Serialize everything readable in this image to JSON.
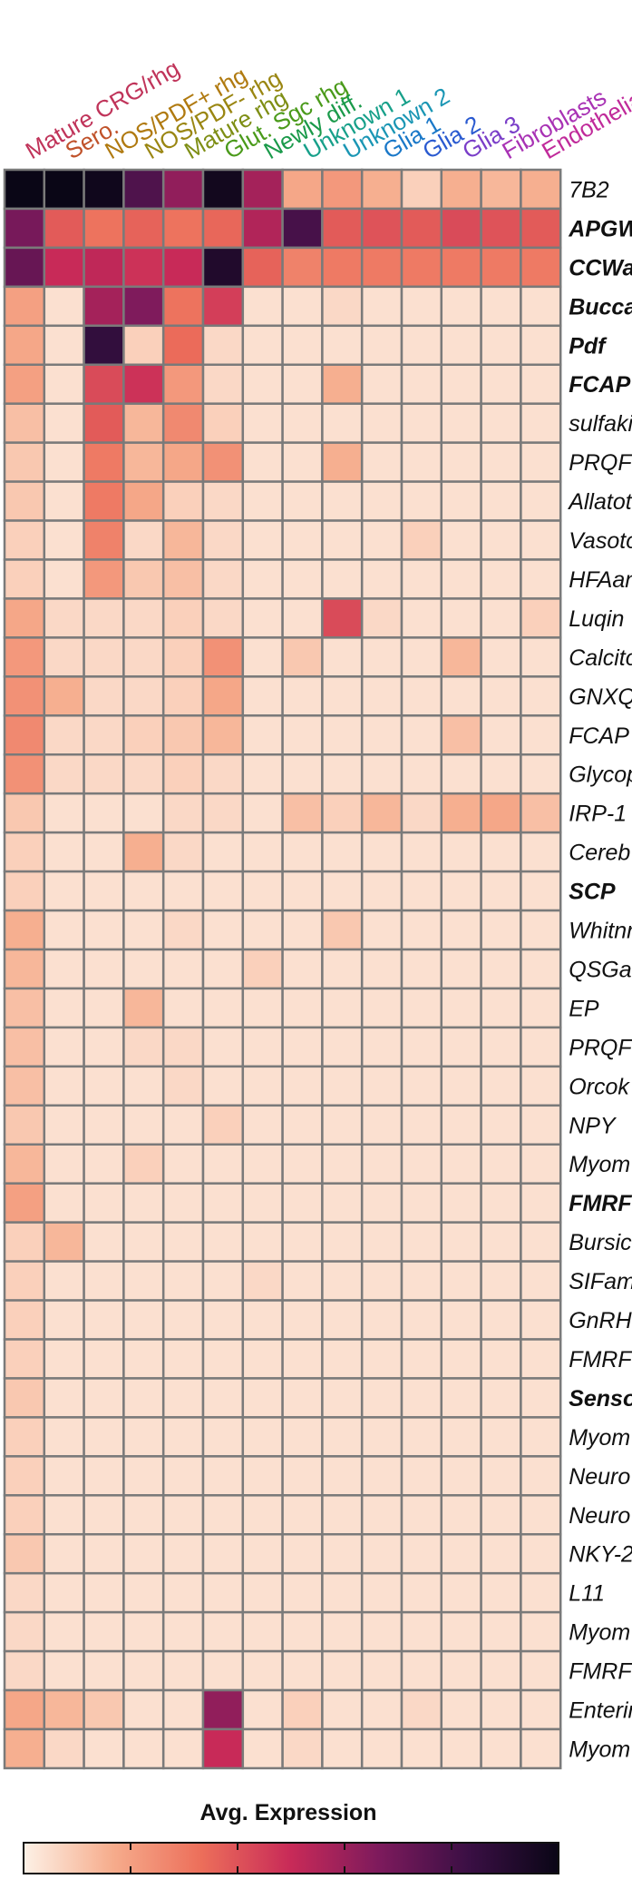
{
  "chart_data": {
    "type": "heatmap",
    "columns": [
      {
        "label": "Mature CRG/rhg",
        "color": "#c0345a"
      },
      {
        "label": "Sero.",
        "color": "#c0522a"
      },
      {
        "label": "NOS/PDF+ rhg",
        "color": "#b07a10"
      },
      {
        "label": "NOS/PDF- rhg",
        "color": "#9a8612"
      },
      {
        "label": "Mature rhg",
        "color": "#7e8e14"
      },
      {
        "label": "Glut. Sgc rhg",
        "color": "#4a9a1a"
      },
      {
        "label": "Newly diff.",
        "color": "#1a9a4a"
      },
      {
        "label": "Unknown 1",
        "color": "#17a08a"
      },
      {
        "label": "Unknown 2",
        "color": "#1a96b4"
      },
      {
        "label": "Glia 1",
        "color": "#1a78c8"
      },
      {
        "label": "Glia 2",
        "color": "#2a5ad0"
      },
      {
        "label": "Glia 3",
        "color": "#7a3ec8"
      },
      {
        "label": "Fibroblasts",
        "color": "#a832b4"
      },
      {
        "label": "Endothelial",
        "color": "#c02a9a"
      }
    ],
    "rows": [
      {
        "label": "7B2",
        "bold": false
      },
      {
        "label": "APGW",
        "bold": true
      },
      {
        "label": "CCWa",
        "bold": true
      },
      {
        "label": "Bucca",
        "bold": true
      },
      {
        "label": "Pdf",
        "bold": true
      },
      {
        "label": "FCAP",
        "bold": true
      },
      {
        "label": "sulfaki",
        "bold": false
      },
      {
        "label": "PRQF",
        "bold": false
      },
      {
        "label": "Allatot",
        "bold": false
      },
      {
        "label": "Vasoto",
        "bold": false
      },
      {
        "label": "HFAan",
        "bold": false
      },
      {
        "label": "Luqin",
        "bold": false
      },
      {
        "label": "Calcito",
        "bold": false
      },
      {
        "label": "GNXQ",
        "bold": false
      },
      {
        "label": "FCAP",
        "bold": false
      },
      {
        "label": "Glycop",
        "bold": false
      },
      {
        "label": "IRP-1",
        "bold": false
      },
      {
        "label": "Cereb",
        "bold": false
      },
      {
        "label": "SCP",
        "bold": true
      },
      {
        "label": "Whitnr",
        "bold": false
      },
      {
        "label": "QSGa",
        "bold": false
      },
      {
        "label": "EP",
        "bold": false
      },
      {
        "label": "PRQF",
        "bold": false
      },
      {
        "label": "Orcok",
        "bold": false
      },
      {
        "label": "NPY",
        "bold": false
      },
      {
        "label": "Myom",
        "bold": false
      },
      {
        "label": "FMRF",
        "bold": true
      },
      {
        "label": "Bursic",
        "bold": false
      },
      {
        "label": "SIFam",
        "bold": false
      },
      {
        "label": "GnRH",
        "bold": false
      },
      {
        "label": "FMRF",
        "bold": false
      },
      {
        "label": "Senso",
        "bold": true
      },
      {
        "label": "Myom",
        "bold": false
      },
      {
        "label": "Neuro",
        "bold": false
      },
      {
        "label": "Neuro",
        "bold": false
      },
      {
        "label": "NKY-2",
        "bold": false
      },
      {
        "label": "L11",
        "bold": false
      },
      {
        "label": "Myom",
        "bold": false
      },
      {
        "label": "FMRF",
        "bold": false
      },
      {
        "label": "Enterin",
        "bold": false
      },
      {
        "label": "Myom",
        "bold": false
      }
    ],
    "values": [
      [
        1.0,
        1.0,
        0.98,
        0.78,
        0.62,
        0.97,
        0.58,
        0.18,
        0.22,
        0.16,
        0.08,
        0.16,
        0.14,
        0.16
      ],
      [
        0.68,
        0.38,
        0.32,
        0.36,
        0.32,
        0.35,
        0.55,
        0.8,
        0.38,
        0.4,
        0.38,
        0.42,
        0.4,
        0.38
      ],
      [
        0.72,
        0.5,
        0.52,
        0.48,
        0.5,
        0.92,
        0.36,
        0.28,
        0.3,
        0.3,
        0.3,
        0.3,
        0.3,
        0.3
      ],
      [
        0.2,
        0.04,
        0.58,
        0.66,
        0.32,
        0.45,
        0.04,
        0.04,
        0.06,
        0.04,
        0.04,
        0.04,
        0.04,
        0.04
      ],
      [
        0.18,
        0.04,
        0.86,
        0.08,
        0.34,
        0.06,
        0.04,
        0.04,
        0.04,
        0.04,
        0.04,
        0.04,
        0.04,
        0.04
      ],
      [
        0.2,
        0.04,
        0.42,
        0.48,
        0.22,
        0.06,
        0.04,
        0.04,
        0.16,
        0.04,
        0.04,
        0.04,
        0.04,
        0.04
      ],
      [
        0.12,
        0.04,
        0.38,
        0.14,
        0.26,
        0.08,
        0.04,
        0.04,
        0.04,
        0.04,
        0.04,
        0.04,
        0.04,
        0.04
      ],
      [
        0.1,
        0.04,
        0.3,
        0.14,
        0.18,
        0.24,
        0.04,
        0.04,
        0.16,
        0.04,
        0.04,
        0.04,
        0.04,
        0.04
      ],
      [
        0.1,
        0.04,
        0.3,
        0.18,
        0.08,
        0.06,
        0.04,
        0.04,
        0.04,
        0.04,
        0.04,
        0.04,
        0.04,
        0.04
      ],
      [
        0.08,
        0.04,
        0.28,
        0.06,
        0.14,
        0.06,
        0.04,
        0.04,
        0.04,
        0.04,
        0.08,
        0.04,
        0.04,
        0.04
      ],
      [
        0.08,
        0.04,
        0.22,
        0.1,
        0.12,
        0.06,
        0.04,
        0.04,
        0.04,
        0.04,
        0.04,
        0.04,
        0.04,
        0.04
      ],
      [
        0.18,
        0.06,
        0.06,
        0.06,
        0.08,
        0.06,
        0.04,
        0.04,
        0.42,
        0.06,
        0.04,
        0.04,
        0.04,
        0.08
      ],
      [
        0.22,
        0.06,
        0.06,
        0.06,
        0.08,
        0.24,
        0.04,
        0.1,
        0.04,
        0.04,
        0.04,
        0.14,
        0.04,
        0.04
      ],
      [
        0.24,
        0.16,
        0.06,
        0.06,
        0.08,
        0.18,
        0.04,
        0.04,
        0.04,
        0.04,
        0.04,
        0.04,
        0.04,
        0.04
      ],
      [
        0.26,
        0.06,
        0.06,
        0.08,
        0.1,
        0.14,
        0.04,
        0.04,
        0.04,
        0.04,
        0.04,
        0.12,
        0.04,
        0.04
      ],
      [
        0.24,
        0.06,
        0.06,
        0.06,
        0.08,
        0.06,
        0.04,
        0.04,
        0.04,
        0.04,
        0.04,
        0.04,
        0.04,
        0.04
      ],
      [
        0.1,
        0.04,
        0.04,
        0.04,
        0.06,
        0.06,
        0.04,
        0.12,
        0.08,
        0.14,
        0.06,
        0.16,
        0.18,
        0.12
      ],
      [
        0.08,
        0.04,
        0.04,
        0.16,
        0.06,
        0.04,
        0.04,
        0.04,
        0.04,
        0.04,
        0.04,
        0.04,
        0.04,
        0.04
      ],
      [
        0.08,
        0.04,
        0.04,
        0.04,
        0.04,
        0.04,
        0.04,
        0.04,
        0.04,
        0.04,
        0.04,
        0.04,
        0.04,
        0.04
      ],
      [
        0.16,
        0.04,
        0.04,
        0.04,
        0.06,
        0.04,
        0.04,
        0.04,
        0.1,
        0.04,
        0.04,
        0.04,
        0.04,
        0.04
      ],
      [
        0.14,
        0.04,
        0.04,
        0.04,
        0.04,
        0.04,
        0.08,
        0.04,
        0.04,
        0.04,
        0.04,
        0.04,
        0.04,
        0.04
      ],
      [
        0.12,
        0.04,
        0.04,
        0.14,
        0.04,
        0.04,
        0.04,
        0.04,
        0.04,
        0.04,
        0.04,
        0.04,
        0.04,
        0.04
      ],
      [
        0.12,
        0.04,
        0.04,
        0.06,
        0.06,
        0.04,
        0.04,
        0.04,
        0.04,
        0.04,
        0.04,
        0.04,
        0.04,
        0.04
      ],
      [
        0.12,
        0.04,
        0.04,
        0.04,
        0.06,
        0.04,
        0.04,
        0.04,
        0.04,
        0.04,
        0.04,
        0.04,
        0.04,
        0.04
      ],
      [
        0.1,
        0.04,
        0.04,
        0.04,
        0.04,
        0.08,
        0.04,
        0.04,
        0.04,
        0.04,
        0.04,
        0.04,
        0.04,
        0.04
      ],
      [
        0.14,
        0.04,
        0.04,
        0.08,
        0.04,
        0.04,
        0.04,
        0.04,
        0.04,
        0.04,
        0.04,
        0.04,
        0.04,
        0.04
      ],
      [
        0.2,
        0.04,
        0.04,
        0.04,
        0.04,
        0.04,
        0.04,
        0.04,
        0.04,
        0.04,
        0.04,
        0.04,
        0.04,
        0.04
      ],
      [
        0.08,
        0.14,
        0.04,
        0.04,
        0.04,
        0.04,
        0.04,
        0.04,
        0.04,
        0.04,
        0.04,
        0.04,
        0.04,
        0.04
      ],
      [
        0.08,
        0.04,
        0.04,
        0.04,
        0.04,
        0.04,
        0.06,
        0.04,
        0.04,
        0.04,
        0.04,
        0.04,
        0.04,
        0.04
      ],
      [
        0.08,
        0.04,
        0.04,
        0.04,
        0.04,
        0.04,
        0.04,
        0.04,
        0.04,
        0.04,
        0.04,
        0.04,
        0.04,
        0.04
      ],
      [
        0.08,
        0.04,
        0.04,
        0.04,
        0.04,
        0.04,
        0.04,
        0.04,
        0.04,
        0.04,
        0.04,
        0.04,
        0.04,
        0.04
      ],
      [
        0.1,
        0.04,
        0.04,
        0.04,
        0.04,
        0.04,
        0.04,
        0.04,
        0.04,
        0.04,
        0.04,
        0.04,
        0.04,
        0.04
      ],
      [
        0.08,
        0.04,
        0.04,
        0.04,
        0.04,
        0.04,
        0.04,
        0.04,
        0.04,
        0.04,
        0.04,
        0.04,
        0.04,
        0.04
      ],
      [
        0.08,
        0.04,
        0.04,
        0.04,
        0.04,
        0.04,
        0.04,
        0.04,
        0.04,
        0.04,
        0.04,
        0.04,
        0.04,
        0.04
      ],
      [
        0.08,
        0.04,
        0.04,
        0.04,
        0.04,
        0.04,
        0.04,
        0.04,
        0.04,
        0.04,
        0.04,
        0.04,
        0.04,
        0.04
      ],
      [
        0.1,
        0.04,
        0.04,
        0.04,
        0.04,
        0.04,
        0.04,
        0.04,
        0.04,
        0.04,
        0.04,
        0.04,
        0.04,
        0.04
      ],
      [
        0.06,
        0.04,
        0.04,
        0.04,
        0.04,
        0.04,
        0.04,
        0.04,
        0.04,
        0.04,
        0.04,
        0.04,
        0.04,
        0.04
      ],
      [
        0.06,
        0.04,
        0.04,
        0.04,
        0.04,
        0.04,
        0.04,
        0.04,
        0.04,
        0.04,
        0.04,
        0.04,
        0.04,
        0.04
      ],
      [
        0.06,
        0.04,
        0.04,
        0.04,
        0.04,
        0.04,
        0.04,
        0.04,
        0.04,
        0.04,
        0.04,
        0.04,
        0.04,
        0.04
      ],
      [
        0.18,
        0.14,
        0.1,
        0.04,
        0.04,
        0.62,
        0.04,
        0.08,
        0.04,
        0.04,
        0.06,
        0.04,
        0.04,
        0.04
      ],
      [
        0.16,
        0.06,
        0.04,
        0.04,
        0.04,
        0.5,
        0.04,
        0.06,
        0.04,
        0.04,
        0.04,
        0.04,
        0.04,
        0.04
      ]
    ],
    "colorscale": [
      "#fdf1e6",
      "#f6ac8c",
      "#ec6e5a",
      "#c82a58",
      "#7c1a5c",
      "#3a0f44",
      "#0a0616"
    ],
    "legend": {
      "title": "Avg. Expression",
      "position": "bottom",
      "ticks": 4
    },
    "grid": true
  }
}
